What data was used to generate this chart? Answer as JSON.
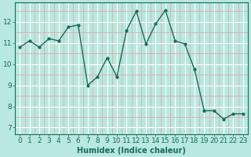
{
  "x": [
    0,
    1,
    2,
    3,
    4,
    5,
    6,
    7,
    8,
    9,
    10,
    11,
    12,
    13,
    14,
    15,
    16,
    17,
    18,
    19,
    20,
    21,
    22,
    23
  ],
  "y": [
    10.8,
    11.1,
    10.8,
    11.2,
    11.1,
    11.75,
    11.85,
    9.0,
    9.4,
    10.3,
    9.4,
    11.6,
    12.5,
    10.95,
    11.9,
    12.55,
    11.1,
    10.95,
    9.75,
    7.8,
    7.8,
    7.4,
    7.65,
    7.65
  ],
  "line_color": "#1a6b5a",
  "marker": "o",
  "marker_size": 2.0,
  "linewidth": 1.0,
  "bg_color": "#b8e8e0",
  "grid_major_color": "#ffffff",
  "grid_minor_color": "#e8a0a0",
  "xlabel": "Humidex (Indice chaleur)",
  "xlabel_fontsize": 7,
  "xticks": [
    0,
    1,
    2,
    3,
    4,
    5,
    6,
    7,
    8,
    9,
    10,
    11,
    12,
    13,
    14,
    15,
    16,
    17,
    18,
    19,
    20,
    21,
    22,
    23
  ],
  "yticks": [
    7,
    8,
    9,
    10,
    11,
    12
  ],
  "ylim": [
    6.7,
    12.9
  ],
  "xlim": [
    -0.5,
    23.5
  ],
  "tick_fontsize": 6.5,
  "tick_color": "#1a6b5a",
  "spine_color": "#1a6b5a"
}
